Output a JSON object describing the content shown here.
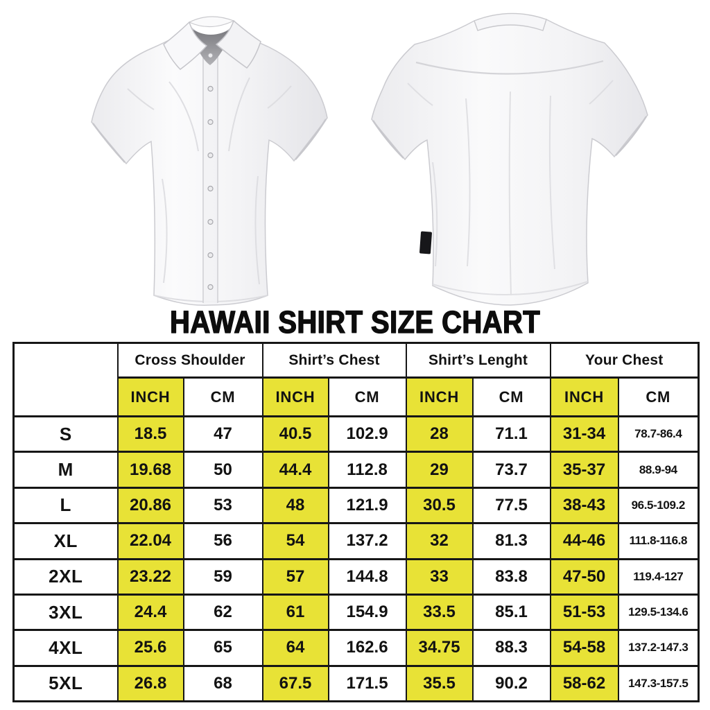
{
  "page": {
    "title": "HAWAII SHIRT SIZE CHART"
  },
  "shirts": {
    "front_label": "white short-sleeve shirt front view",
    "back_label": "white short-sleeve shirt back view"
  },
  "colors": {
    "highlight_yellow": "#e8e236",
    "table_border": "#161616",
    "text": "#121212",
    "background": "#ffffff",
    "tag_black": "#17171a"
  },
  "chart_data": {
    "type": "table",
    "title": "HAWAII SHIRT SIZE CHART",
    "column_groups": [
      "Cross Shoulder",
      "Shirt’s Chest",
      "Shirt’s Lenght",
      "Your Chest"
    ],
    "unit_headers": [
      "INCH",
      "CM",
      "INCH",
      "CM",
      "INCH",
      "CM",
      "INCH",
      "CM"
    ],
    "highlighted_unit": "INCH",
    "rows": [
      {
        "size": "S",
        "values": [
          "18.5",
          "47",
          "40.5",
          "102.9",
          "28",
          "71.1",
          "31-34",
          "78.7-86.4"
        ]
      },
      {
        "size": "M",
        "values": [
          "19.68",
          "50",
          "44.4",
          "112.8",
          "29",
          "73.7",
          "35-37",
          "88.9-94"
        ]
      },
      {
        "size": "L",
        "values": [
          "20.86",
          "53",
          "48",
          "121.9",
          "30.5",
          "77.5",
          "38-43",
          "96.5-109.2"
        ]
      },
      {
        "size": "XL",
        "values": [
          "22.04",
          "56",
          "54",
          "137.2",
          "32",
          "81.3",
          "44-46",
          "111.8-116.8"
        ]
      },
      {
        "size": "2XL",
        "values": [
          "23.22",
          "59",
          "57",
          "144.8",
          "33",
          "83.8",
          "47-50",
          "119.4-127"
        ]
      },
      {
        "size": "3XL",
        "values": [
          "24.4",
          "62",
          "61",
          "154.9",
          "33.5",
          "85.1",
          "51-53",
          "129.5-134.6"
        ]
      },
      {
        "size": "4XL",
        "values": [
          "25.6",
          "65",
          "64",
          "162.6",
          "34.75",
          "88.3",
          "54-58",
          "137.2-147.3"
        ]
      },
      {
        "size": "5XL",
        "values": [
          "26.8",
          "68",
          "67.5",
          "171.5",
          "35.5",
          "90.2",
          "58-62",
          "147.3-157.5"
        ]
      }
    ]
  }
}
